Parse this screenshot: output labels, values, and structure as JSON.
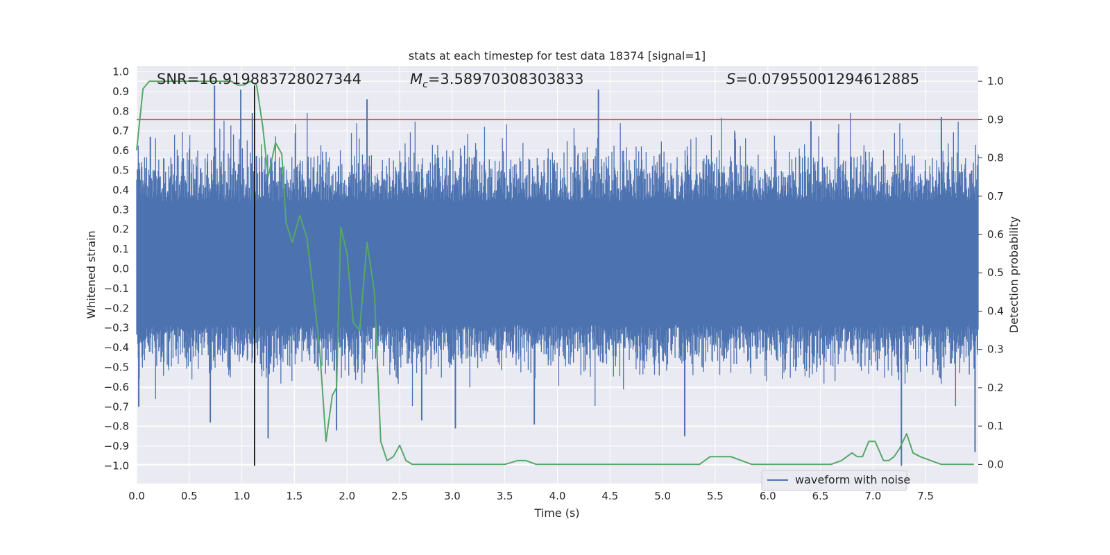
{
  "chart_data": {
    "type": "line",
    "title": "stats at each timestep for test data 18374 [signal=1]",
    "xlabel": "Time (s)",
    "ylabel_left": "Whitened strain",
    "ylabel_right": "Detection probability",
    "xlim": [
      0.0,
      8.0
    ],
    "ylim_left": [
      -1.09,
      1.03
    ],
    "ylim_right": [
      -0.05,
      1.04
    ],
    "x_ticks": [
      "0.0",
      "0.5",
      "1.0",
      "1.5",
      "2.0",
      "2.5",
      "3.0",
      "3.5",
      "4.0",
      "4.5",
      "5.0",
      "5.5",
      "6.0",
      "6.5",
      "7.0",
      "7.5"
    ],
    "y_left_ticks": [
      "1.0",
      "0.9",
      "0.8",
      "0.7",
      "0.6",
      "0.5",
      "0.4",
      "0.3",
      "0.2",
      "0.1",
      "0.0",
      "−0.1",
      "−0.2",
      "−0.3",
      "−0.4",
      "−0.5",
      "−0.6",
      "−0.7",
      "−0.8",
      "−0.9",
      "−1.0"
    ],
    "y_right_ticks": [
      "1.0",
      "0.9",
      "0.8",
      "0.7",
      "0.6",
      "0.5",
      "0.4",
      "0.3",
      "0.2",
      "0.1",
      "0.0"
    ],
    "grid": true,
    "legend_position": "bottom-right",
    "annotations": {
      "snr": "SNR=16.919883728027344",
      "mc_symbol": "M",
      "mc_sub": "c",
      "mc_value": "=3.58970308303833",
      "s_symbol": "S",
      "s_value": "=0.07955001294612885"
    },
    "threshold_line": {
      "axis": "right",
      "y": 0.9,
      "color": "#c44e52"
    },
    "marker_line": {
      "x": 1.12,
      "y_from": -1.0,
      "y_to": 0.93,
      "color": "#000000"
    },
    "series": [
      {
        "name": "waveform with noise",
        "axis": "left",
        "color": "#4c72b0",
        "style": "dense-noise",
        "envelope": {
          "x_start": 0.0,
          "x_end": 8.0,
          "y_min": -1.0,
          "y_max": 0.93,
          "typical_upper": 0.62,
          "typical_lower": -0.52
        },
        "peaks": [
          {
            "x": 0.74,
            "y": 0.93
          },
          {
            "x": 0.99,
            "y": 0.91
          },
          {
            "x": 1.1,
            "y": 0.79
          },
          {
            "x": 2.19,
            "y": 0.86
          },
          {
            "x": 4.39,
            "y": 0.91
          },
          {
            "x": 6.41,
            "y": 0.75
          },
          {
            "x": 7.65,
            "y": 0.77
          },
          {
            "x": 0.13,
            "y": 0.67
          },
          {
            "x": 0.7,
            "y": -0.78
          },
          {
            "x": 1.25,
            "y": -0.86
          },
          {
            "x": 0.02,
            "y": -0.7
          },
          {
            "x": 3.03,
            "y": -0.81
          },
          {
            "x": 3.78,
            "y": -0.79
          },
          {
            "x": 5.21,
            "y": -0.85
          },
          {
            "x": 7.27,
            "y": -1.0
          },
          {
            "x": 7.97,
            "y": -0.93
          },
          {
            "x": 2.71,
            "y": -0.77
          },
          {
            "x": 1.9,
            "y": -0.82
          }
        ]
      },
      {
        "name": "detection probability",
        "axis": "right",
        "color": "#55a868",
        "x": [
          0.0,
          0.06,
          0.12,
          0.2,
          0.3,
          0.4,
          0.5,
          0.6,
          0.7,
          0.8,
          0.9,
          0.96,
          1.02,
          1.08,
          1.14,
          1.2,
          1.25,
          1.32,
          1.38,
          1.42,
          1.48,
          1.55,
          1.62,
          1.68,
          1.74,
          1.8,
          1.86,
          1.9,
          1.94,
          2.0,
          2.06,
          2.12,
          2.19,
          2.26,
          2.32,
          2.38,
          2.44,
          2.5,
          2.56,
          2.62,
          2.7,
          2.78,
          2.9,
          3.1,
          3.3,
          3.5,
          3.62,
          3.7,
          3.8,
          3.9,
          4.0,
          4.1,
          4.2,
          4.4,
          4.6,
          4.8,
          5.0,
          5.1,
          5.25,
          5.35,
          5.45,
          5.55,
          5.65,
          5.75,
          5.85,
          6.0,
          6.3,
          6.6,
          6.7,
          6.8,
          6.85,
          6.9,
          6.96,
          7.02,
          7.1,
          7.15,
          7.2,
          7.25,
          7.32,
          7.38,
          7.45,
          7.55,
          7.65,
          7.75,
          7.9,
          7.96
        ],
        "y": [
          0.82,
          0.98,
          1.0,
          1.0,
          1.0,
          1.0,
          1.0,
          1.0,
          1.0,
          1.0,
          1.0,
          0.99,
          0.99,
          1.0,
          0.99,
          0.88,
          0.75,
          0.84,
          0.81,
          0.63,
          0.58,
          0.65,
          0.59,
          0.45,
          0.3,
          0.06,
          0.18,
          0.2,
          0.62,
          0.55,
          0.37,
          0.35,
          0.58,
          0.45,
          0.06,
          0.01,
          0.02,
          0.05,
          0.01,
          0.0,
          0.0,
          0.0,
          0.0,
          0.0,
          0.0,
          0.0,
          0.01,
          0.01,
          0.0,
          0.0,
          0.0,
          0.0,
          0.0,
          0.0,
          0.0,
          0.0,
          0.0,
          0.0,
          0.0,
          0.0,
          0.02,
          0.02,
          0.02,
          0.01,
          0.0,
          0.0,
          0.0,
          0.0,
          0.01,
          0.03,
          0.02,
          0.02,
          0.06,
          0.06,
          0.01,
          0.01,
          0.02,
          0.04,
          0.08,
          0.03,
          0.02,
          0.01,
          0.0,
          0.0,
          0.0,
          0.0
        ]
      }
    ]
  }
}
